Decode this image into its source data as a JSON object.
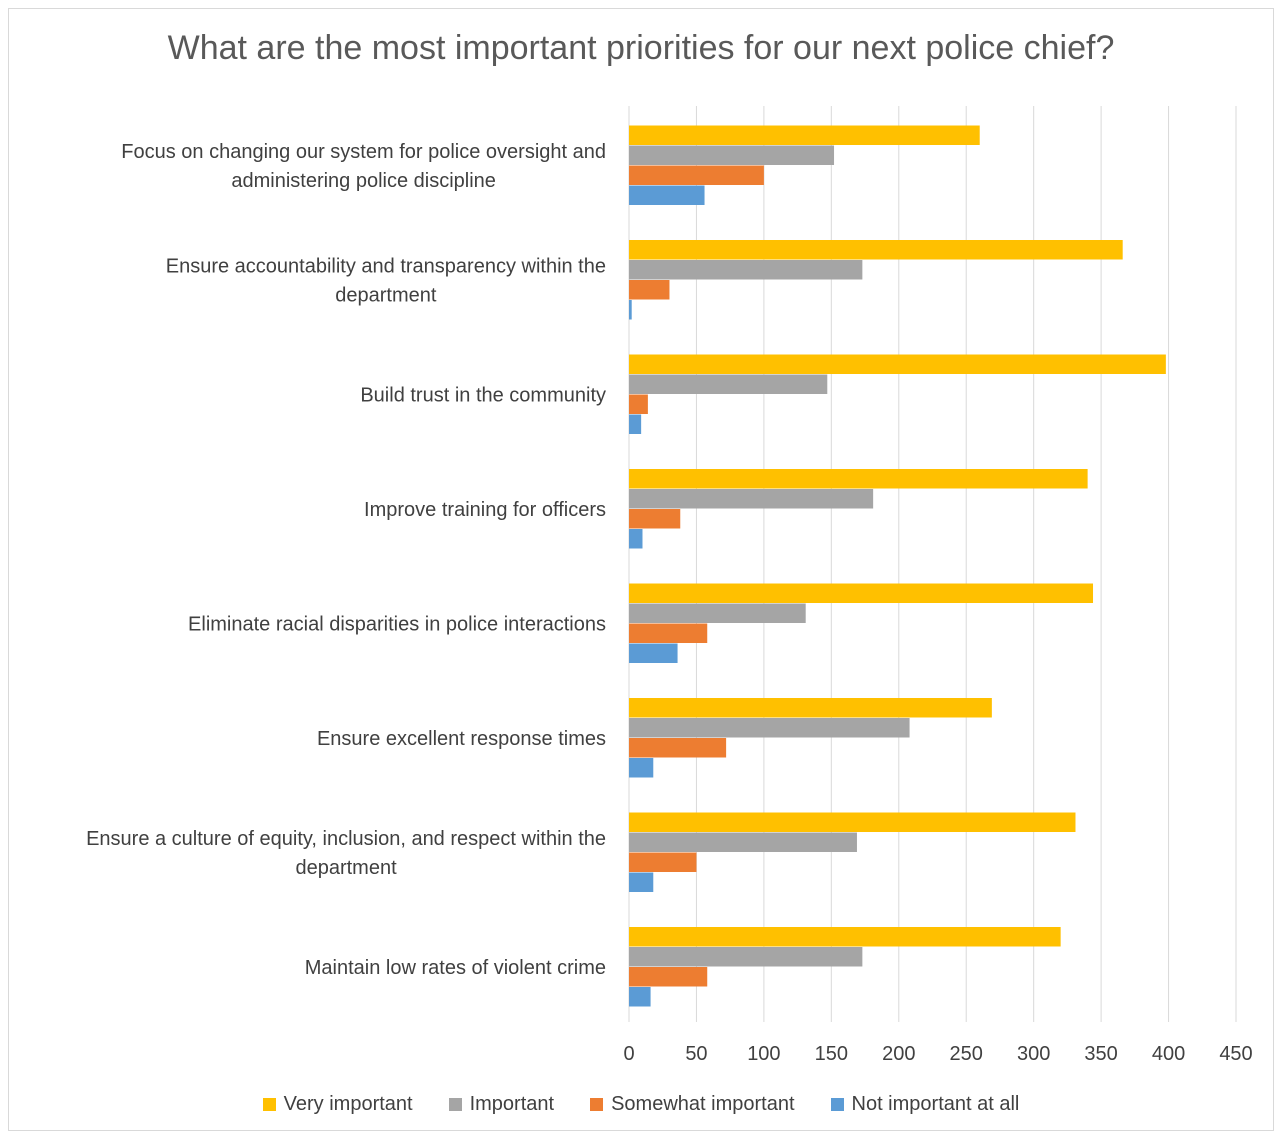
{
  "chart_data": {
    "type": "bar",
    "orientation": "horizontal",
    "title": "What are the most important priorities for our next police chief?",
    "categories": [
      [
        "Focus on changing our system for police oversight and",
        "administering police discipline"
      ],
      [
        "Ensure accountability and transparency within the",
        "department"
      ],
      [
        "Build trust in the community"
      ],
      [
        "Improve training for officers"
      ],
      [
        "Eliminate racial disparities in police interactions"
      ],
      [
        "Ensure excellent response times"
      ],
      [
        "Ensure a culture of equity, inclusion, and respect within the",
        "department"
      ],
      [
        "Maintain low rates of violent crime"
      ]
    ],
    "series": [
      {
        "name": "Very important",
        "color": "#FFC000",
        "values": [
          260,
          366,
          398,
          340,
          344,
          269,
          331,
          320
        ]
      },
      {
        "name": "Important",
        "color": "#A5A5A5",
        "values": [
          152,
          173,
          147,
          181,
          131,
          208,
          169,
          173
        ]
      },
      {
        "name": "Somewhat important",
        "color": "#ED7D31",
        "values": [
          100,
          30,
          14,
          38,
          58,
          72,
          50,
          58
        ]
      },
      {
        "name": "Not important at all",
        "color": "#5B9BD5",
        "values": [
          56,
          2,
          9,
          10,
          36,
          18,
          18,
          16
        ]
      }
    ],
    "xlim": [
      0,
      450
    ],
    "ticks": [
      "0",
      "50",
      "100",
      "150",
      "200",
      "250",
      "300",
      "350",
      "400",
      "450"
    ],
    "grid": true,
    "legend": "bottom"
  }
}
